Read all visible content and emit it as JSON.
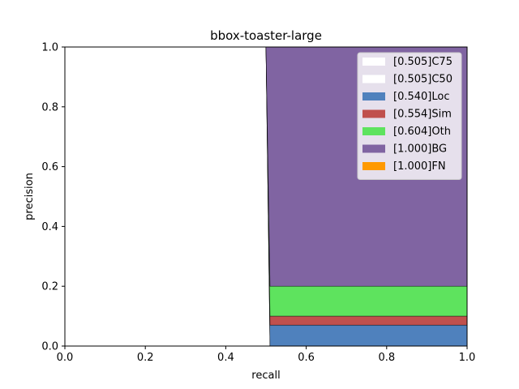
{
  "chart_data": {
    "type": "area",
    "title": "bbox-toaster-large",
    "xlabel": "recall",
    "ylabel": "precision",
    "xlim": [
      0,
      1
    ],
    "ylim": [
      0,
      1
    ],
    "x_ticks": [
      "0.0",
      "0.2",
      "0.4",
      "0.6",
      "0.8",
      "1.0"
    ],
    "y_ticks": [
      "0.0",
      "0.2",
      "0.4",
      "0.6",
      "0.8",
      "1.0"
    ],
    "grid": false,
    "legend_position": "top-right",
    "series": [
      {
        "name": "[0.505]C75",
        "color": "#ffffff",
        "points": [
          [
            0,
            1.0
          ],
          [
            0.5,
            1.0
          ],
          [
            0.51,
            0.0
          ],
          [
            1.0,
            0.0
          ]
        ]
      },
      {
        "name": "[0.505]C50",
        "color": "#ffffff",
        "points": [
          [
            0,
            1.0
          ],
          [
            0.5,
            1.0
          ],
          [
            0.51,
            0.0
          ],
          [
            1.0,
            0.0
          ]
        ]
      },
      {
        "name": "[0.540]Loc",
        "color": "#4f81bd",
        "points": [
          [
            0,
            1.0
          ],
          [
            0.5,
            1.0
          ],
          [
            0.51,
            0.07
          ],
          [
            1.0,
            0.07
          ]
        ]
      },
      {
        "name": "[0.554]Sim",
        "color": "#c0504d",
        "points": [
          [
            0,
            1.0
          ],
          [
            0.5,
            1.0
          ],
          [
            0.51,
            0.1
          ],
          [
            1.0,
            0.1
          ]
        ]
      },
      {
        "name": "[0.604]Oth",
        "color": "#5ee35e",
        "points": [
          [
            0,
            1.0
          ],
          [
            0.5,
            1.0
          ],
          [
            0.51,
            0.2
          ],
          [
            1.0,
            0.2
          ]
        ]
      },
      {
        "name": "[1.000]BG",
        "color": "#8064a2",
        "points": [
          [
            0,
            1.0
          ],
          [
            1.0,
            1.0
          ]
        ]
      },
      {
        "name": "[1.000]FN",
        "color": "#ff9900",
        "points": [
          [
            0,
            1.0
          ],
          [
            1.0,
            1.0
          ]
        ]
      }
    ]
  }
}
